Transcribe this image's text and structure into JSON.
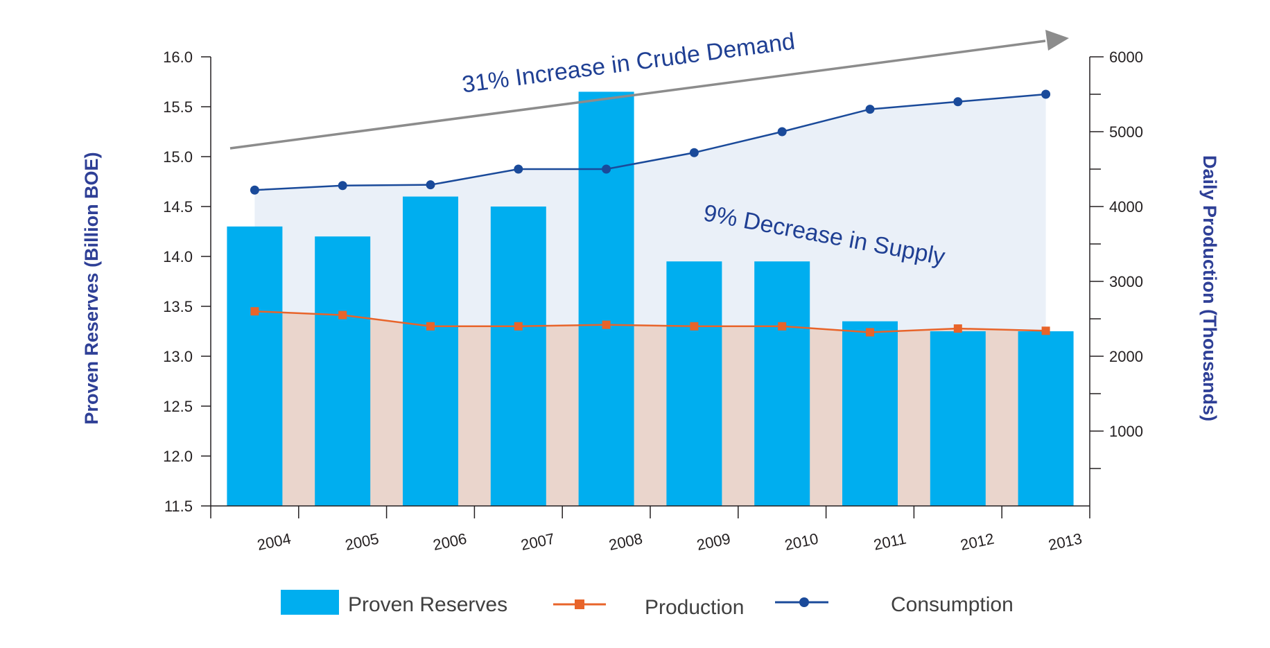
{
  "chart_data": {
    "type": "bar",
    "categories": [
      "2004",
      "2005",
      "2006",
      "2007",
      "2008",
      "2009",
      "2010",
      "2011",
      "2012",
      "2013"
    ],
    "series": [
      {
        "name": "Proven Reserves",
        "type": "bar",
        "axis": "left",
        "values": [
          14.3,
          14.2,
          14.6,
          14.5,
          15.65,
          13.95,
          13.95,
          13.35,
          13.25,
          13.25
        ]
      },
      {
        "name": "Production",
        "type": "line",
        "axis": "right",
        "values": [
          2600,
          2550,
          2400,
          2400,
          2420,
          2400,
          2400,
          2320,
          2370,
          2340
        ]
      },
      {
        "name": "Consumption",
        "type": "line",
        "axis": "right",
        "values": [
          4220,
          4280,
          4290,
          4500,
          4500,
          4720,
          5000,
          5300,
          5400,
          5500
        ]
      }
    ],
    "ylabel": "Proven Reserves (Billion BOE)",
    "y2label": "Daily Production (Thousands)",
    "ylim": [
      11.5,
      16.0
    ],
    "y2lim": [
      0,
      6000
    ],
    "yticks": [
      "11.5",
      "12.0",
      "12.5",
      "13.0",
      "13.5",
      "14.0",
      "14.5",
      "15.0",
      "15.5",
      "16.0"
    ],
    "y2ticks": [
      "1000",
      "2000",
      "3000",
      "4000",
      "5000",
      "6000"
    ],
    "annotations": [
      "31% Increase in Crude Demand",
      "9% Decrease in Supply"
    ],
    "legend": [
      "Proven Reserves",
      "Production",
      "Consumption"
    ],
    "legend_position": "bottom",
    "grid": false,
    "colors": {
      "reserves": "#00aeef",
      "production": "#e8642a",
      "consumption": "#1a4a9a",
      "consumption_fill": "#eaf0f8",
      "production_fill": "#ead5cc",
      "arrow": "#8c8c8c",
      "axis_title": "#2e3f96",
      "annotation": "#1f3f93"
    }
  }
}
